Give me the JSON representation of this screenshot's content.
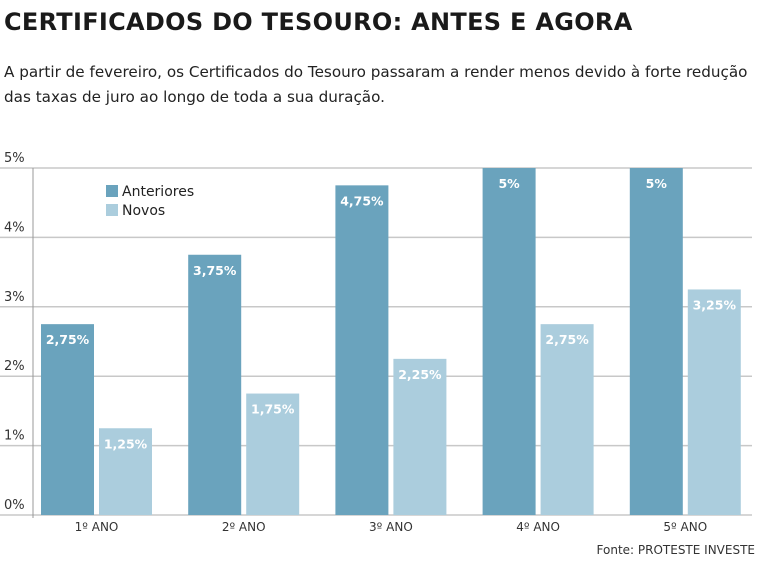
{
  "title": "CERTIFICADOS DO TESOURO: ANTES E AGORA",
  "subtitle": "A partir de fevereiro, os Certificados do Tesouro passaram a render menos devido à forte redução das taxas de juro ao longo de toda a sua duração.",
  "source": "Fonte: PROTESTE INVESTE",
  "chart_data": {
    "type": "bar",
    "categories": [
      "1º ANO",
      "2º ANO",
      "3º ANO",
      "4º ANO",
      "5º ANO"
    ],
    "series": [
      {
        "name": "Anteriores",
        "color": "#6aa3bd",
        "values": [
          2.75,
          3.75,
          4.75,
          5,
          5
        ],
        "labels": [
          "2,75%",
          "3,75%",
          "4,75%",
          "5%",
          "5%"
        ]
      },
      {
        "name": "Novos",
        "color": "#abcddd",
        "values": [
          1.25,
          1.75,
          2.25,
          2.75,
          3.25
        ],
        "labels": [
          "1,25%",
          "1,75%",
          "2,25%",
          "2,75%",
          "3,25%"
        ]
      }
    ],
    "yticks": [
      "0%",
      "1%",
      "2%",
      "3%",
      "4%",
      "5%"
    ],
    "ylim": [
      0,
      5
    ],
    "grid": true,
    "legend": "top-left"
  }
}
